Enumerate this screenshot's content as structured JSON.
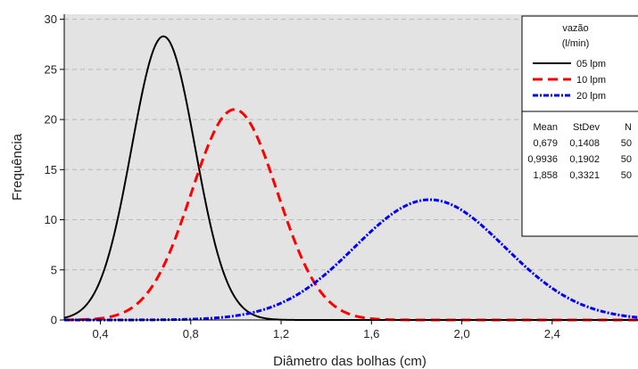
{
  "chart_data": {
    "type": "line",
    "title": "",
    "xlabel": "Diâmetro das bolhas (cm)",
    "ylabel": "Frequência",
    "xlim": [
      0.24,
      2.78
    ],
    "ylim": [
      0,
      30.5
    ],
    "x_ticks": [
      0.4,
      0.8,
      1.2,
      1.6,
      2.0,
      2.4
    ],
    "x_tick_labels": [
      "0,4",
      "0,8",
      "1,2",
      "1,6",
      "2,0",
      "2,4"
    ],
    "y_ticks": [
      0,
      5,
      10,
      15,
      20,
      25,
      30
    ],
    "y_tick_labels": [
      "0",
      "5",
      "10",
      "15",
      "20",
      "25",
      "30"
    ],
    "grid": "horizontal dashed",
    "plot_background": "#e3e3e3",
    "legend": {
      "title_line1": "vazão",
      "title_line2": "(l/min)",
      "placement": "top-right",
      "stats_headers": [
        "Mean",
        "StDev",
        "N"
      ],
      "stats_rows": [
        [
          "0,679",
          "0,1408",
          "50"
        ],
        [
          "0,9936",
          "0,1902",
          "50"
        ],
        [
          "1,858",
          "0,3321",
          "50"
        ]
      ]
    },
    "series": [
      {
        "name": "05 lpm",
        "color": "#000000",
        "dash": "solid",
        "mean": 0.679,
        "stdev": 0.1408,
        "peak": 28.3
      },
      {
        "name": "10 lpm",
        "color": "#ff0000",
        "dash": "dashed",
        "mean": 0.9936,
        "stdev": 0.1902,
        "peak": 21.0
      },
      {
        "name": "20 lpm",
        "color": "#0000ff",
        "dash": "dashdot",
        "mean": 1.858,
        "stdev": 0.3321,
        "peak": 12.0
      }
    ]
  }
}
